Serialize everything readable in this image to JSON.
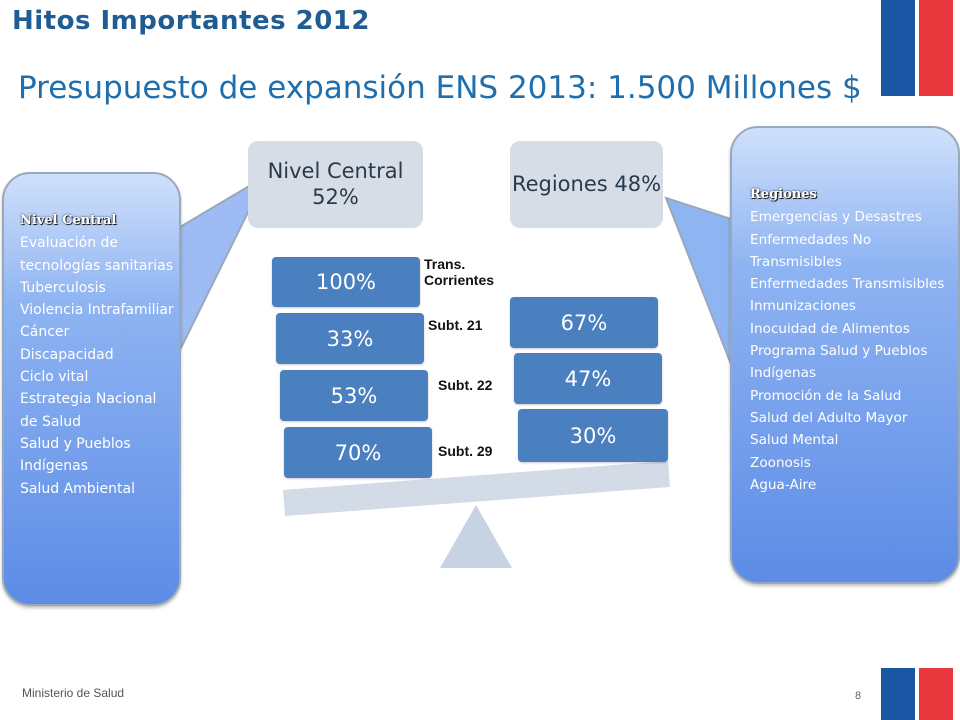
{
  "header": {
    "kicker": "Hitos Importantes 2012",
    "title": "Presupuesto de expansión ENS 2013: 1.500 Millones $"
  },
  "boxes": {
    "central": "Nivel Central 52%",
    "regiones": "Regiones 48%"
  },
  "balance": {
    "left_blocks": [
      {
        "value": "100%",
        "label": "Trans. Corrientes"
      },
      {
        "value": "33%",
        "label": "Subt. 21"
      },
      {
        "value": "53%",
        "label": "Subt. 22"
      },
      {
        "value": "70%",
        "label": "Subt. 29"
      }
    ],
    "right_blocks": [
      "67%",
      "47%",
      "30%"
    ]
  },
  "callout_left": {
    "heading": "Nivel Central",
    "items": [
      "Evaluación de tecnologías sanitarias",
      "Tuberculosis",
      "Violencia Intrafamiliar",
      "Cáncer",
      "Discapacidad",
      "Ciclo vital",
      "Estrategia Nacional de Salud",
      "Salud y Pueblos Indígenas",
      "Salud Ambiental"
    ]
  },
  "callout_right": {
    "heading": "Regiones",
    "items": [
      "Emergencias y Desastres",
      "Enfermedades No Transmisibles",
      "Enfermedades Transmisibles",
      "Inmunizaciones",
      "Inocuidad de Alimentos",
      "Programa Salud y Pueblos Indígenas",
      "Promoción de la Salud",
      "Salud del Adulto Mayor",
      "Salud Mental",
      "Zoonosis",
      "Agua-Aire"
    ]
  },
  "footer": {
    "org": "Ministerio de Salud",
    "page": "8"
  },
  "colors": {
    "flag_blue": "#1b56a4",
    "flag_red": "#e8373d",
    "block_blue": "#4a7fc0",
    "title_blue": "#1f6fae"
  }
}
